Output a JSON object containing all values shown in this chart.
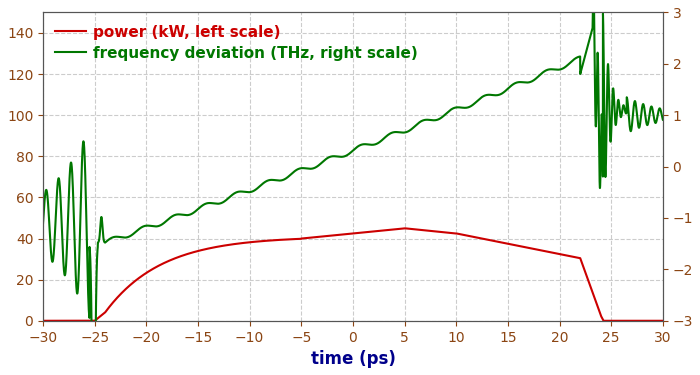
{
  "title": "",
  "xlabel": "time (ps)",
  "legend_power": "power (kW, left scale)",
  "legend_freq": "frequency deviation (THz, right scale)",
  "color_power": "#cc0000",
  "color_freq": "#007700",
  "color_axes": "#8B0000",
  "xlim": [
    -30,
    30
  ],
  "ylim_left": [
    0,
    150
  ],
  "ylim_right": [
    -3,
    3
  ],
  "xticks": [
    -30,
    -25,
    -20,
    -15,
    -10,
    -5,
    0,
    5,
    10,
    15,
    20,
    25,
    30
  ],
  "yticks_left": [
    0,
    20,
    40,
    60,
    80,
    100,
    120,
    140
  ],
  "yticks_right": [
    -3,
    -2,
    -1,
    0,
    1,
    2,
    3
  ],
  "background_color": "#ffffff",
  "grid_color": "#cccccc",
  "linewidth": 1.5
}
